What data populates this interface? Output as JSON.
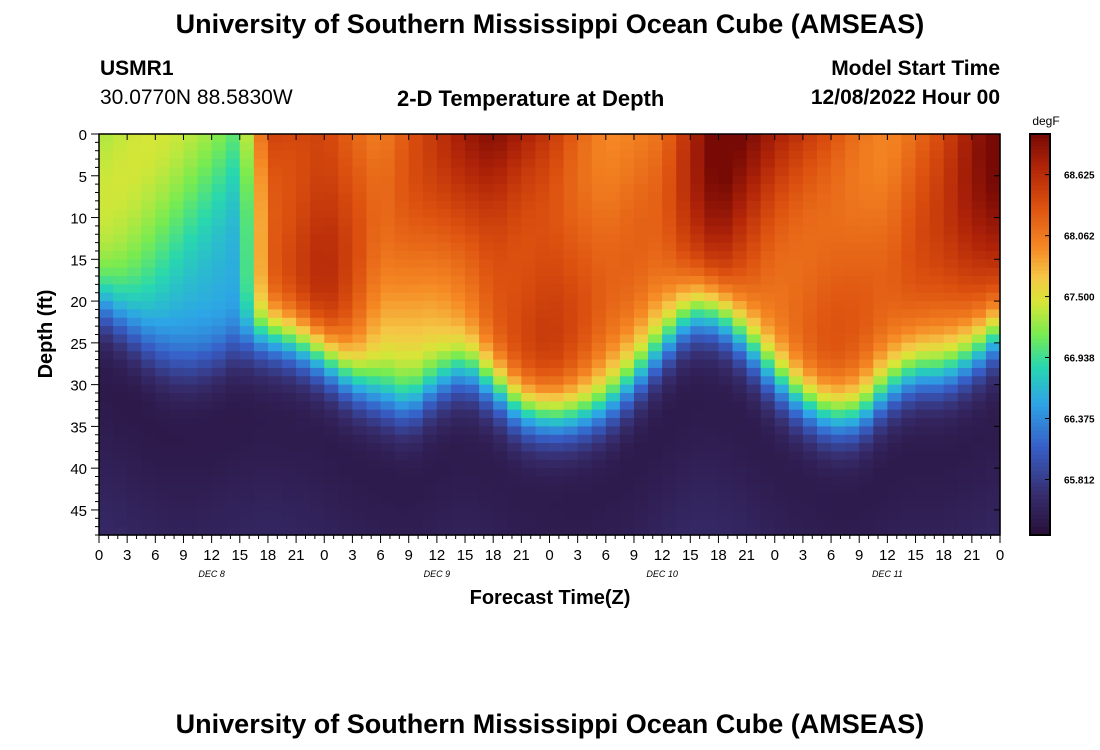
{
  "page": {
    "title": "University of Southern Mississippi Ocean Cube (AMSEAS)",
    "title_repeat": "University of Southern Mississippi Ocean Cube (AMSEAS)",
    "station_id": "USMR1",
    "station_coords": "30.0770N  88.5830W",
    "subtitle": "2-D Temperature at Depth",
    "model_start_label": "Model Start Time",
    "model_start_value": "12/08/2022 Hour 00"
  },
  "chart_data": {
    "type": "heatmap",
    "title": "2-D Temperature at Depth",
    "xlabel": "Forecast Time(Z)",
    "ylabel": "Depth (ft)",
    "x_range_hours": [
      0,
      96
    ],
    "y_range_ft": [
      0,
      48
    ],
    "x_tick_labels": [
      "0",
      "3",
      "6",
      "9",
      "12",
      "15",
      "18",
      "21",
      "0",
      "3",
      "6",
      "9",
      "12",
      "15",
      "18",
      "21",
      "0",
      "3",
      "6",
      "9",
      "12",
      "15",
      "18",
      "21",
      "0",
      "3",
      "6",
      "9",
      "12",
      "15",
      "18",
      "21",
      "0"
    ],
    "y_ticks": [
      0,
      5,
      10,
      15,
      20,
      25,
      30,
      35,
      40,
      45
    ],
    "y_tick_labels": [
      "0",
      "5",
      "10",
      "15",
      "20",
      "25",
      "30",
      "35",
      "40",
      "45"
    ],
    "day_labels": [
      {
        "label": "DEC 8",
        "hour": 12
      },
      {
        "label": "DEC 9",
        "hour": 36
      },
      {
        "label": "DEC 10",
        "hour": 60
      },
      {
        "label": "DEC 11",
        "hour": 84
      }
    ],
    "colorbar": {
      "units": "degF",
      "min": 65.3,
      "max": 69.0,
      "ticks": [
        68.625,
        68.062,
        67.5,
        66.938,
        66.375,
        65.812
      ],
      "tick_labels": [
        "68.625",
        "68.062",
        "67.500",
        "66.938",
        "66.375",
        "65.812"
      ]
    },
    "thermocline_depth_ft": [
      {
        "hour": 0,
        "depth": 21
      },
      {
        "hour": 3,
        "depth": 24
      },
      {
        "hour": 6,
        "depth": 27
      },
      {
        "hour": 9,
        "depth": 28
      },
      {
        "hour": 12,
        "depth": 27
      },
      {
        "hour": 15,
        "depth": 25
      },
      {
        "hour": 18,
        "depth": 24
      },
      {
        "hour": 21,
        "depth": 25
      },
      {
        "hour": 24,
        "depth": 27
      },
      {
        "hour": 27,
        "depth": 30
      },
      {
        "hour": 30,
        "depth": 32
      },
      {
        "hour": 33,
        "depth": 33
      },
      {
        "hour": 36,
        "depth": 30
      },
      {
        "hour": 39,
        "depth": 28
      },
      {
        "hour": 42,
        "depth": 30
      },
      {
        "hour": 45,
        "depth": 33
      },
      {
        "hour": 48,
        "depth": 34
      },
      {
        "hour": 51,
        "depth": 34
      },
      {
        "hour": 54,
        "depth": 33
      },
      {
        "hour": 57,
        "depth": 30
      },
      {
        "hour": 60,
        "depth": 26
      },
      {
        "hour": 63,
        "depth": 22
      },
      {
        "hour": 66,
        "depth": 22
      },
      {
        "hour": 69,
        "depth": 25
      },
      {
        "hour": 72,
        "depth": 29
      },
      {
        "hour": 75,
        "depth": 32
      },
      {
        "hour": 78,
        "depth": 34
      },
      {
        "hour": 81,
        "depth": 34
      },
      {
        "hour": 84,
        "depth": 31
      },
      {
        "hour": 87,
        "depth": 29
      },
      {
        "hour": 90,
        "depth": 29
      },
      {
        "hour": 93,
        "depth": 27
      },
      {
        "hour": 96,
        "depth": 24
      }
    ],
    "surface_temp_degF": [
      {
        "hour": 0,
        "temp": 67.3
      },
      {
        "hour": 6,
        "temp": 67.2
      },
      {
        "hour": 12,
        "temp": 67.1
      },
      {
        "hour": 15,
        "temp": 67.0
      },
      {
        "hour": 18,
        "temp": 68.6
      },
      {
        "hour": 24,
        "temp": 68.7
      },
      {
        "hour": 30,
        "temp": 68.0
      },
      {
        "hour": 36,
        "temp": 68.3
      },
      {
        "hour": 42,
        "temp": 68.8
      },
      {
        "hour": 48,
        "temp": 68.7
      },
      {
        "hour": 54,
        "temp": 68.2
      },
      {
        "hour": 60,
        "temp": 68.1
      },
      {
        "hour": 66,
        "temp": 68.9
      },
      {
        "hour": 72,
        "temp": 68.6
      },
      {
        "hour": 78,
        "temp": 68.5
      },
      {
        "hour": 84,
        "temp": 68.2
      },
      {
        "hour": 90,
        "temp": 68.4
      },
      {
        "hour": 96,
        "temp": 68.9
      }
    ],
    "deep_min_temp_degF": 65.3
  }
}
